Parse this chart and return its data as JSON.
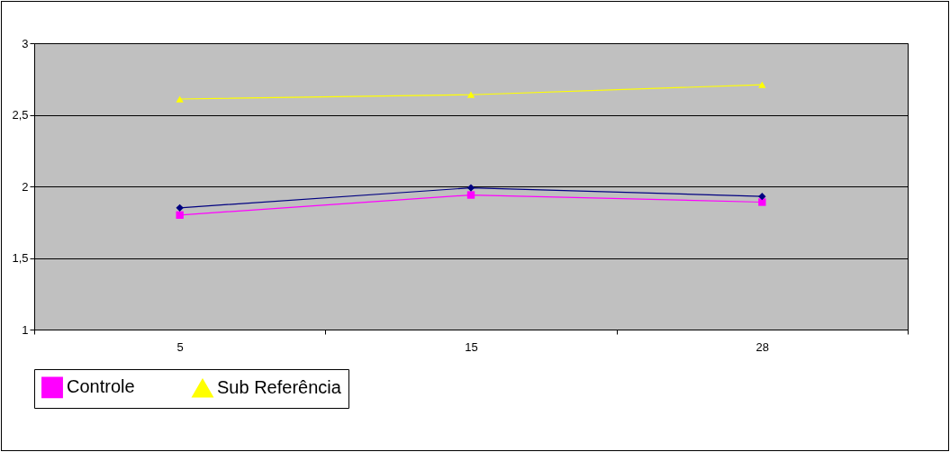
{
  "chart_data": {
    "type": "line",
    "categories": [
      "5",
      "15",
      "28"
    ],
    "series": [
      {
        "name": "Controle",
        "color": "#ff00ff",
        "marker": "square",
        "values": [
          1.8,
          1.94,
          1.89
        ]
      },
      {
        "color": "#000080",
        "marker": "diamond",
        "values": [
          1.85,
          1.99,
          1.93
        ]
      },
      {
        "name": "Sub Referência",
        "color": "#ffff00",
        "marker": "triangle",
        "values": [
          2.61,
          2.64,
          2.71
        ]
      }
    ],
    "ylim": [
      1,
      3
    ],
    "yticks": [
      {
        "value": 1,
        "label": "1"
      },
      {
        "value": 1.5,
        "label": "1,5"
      },
      {
        "value": 2,
        "label": "2"
      },
      {
        "value": 2.5,
        "label": "2,5"
      },
      {
        "value": 3,
        "label": "3"
      }
    ],
    "grid": "y",
    "legend": "bottom"
  }
}
